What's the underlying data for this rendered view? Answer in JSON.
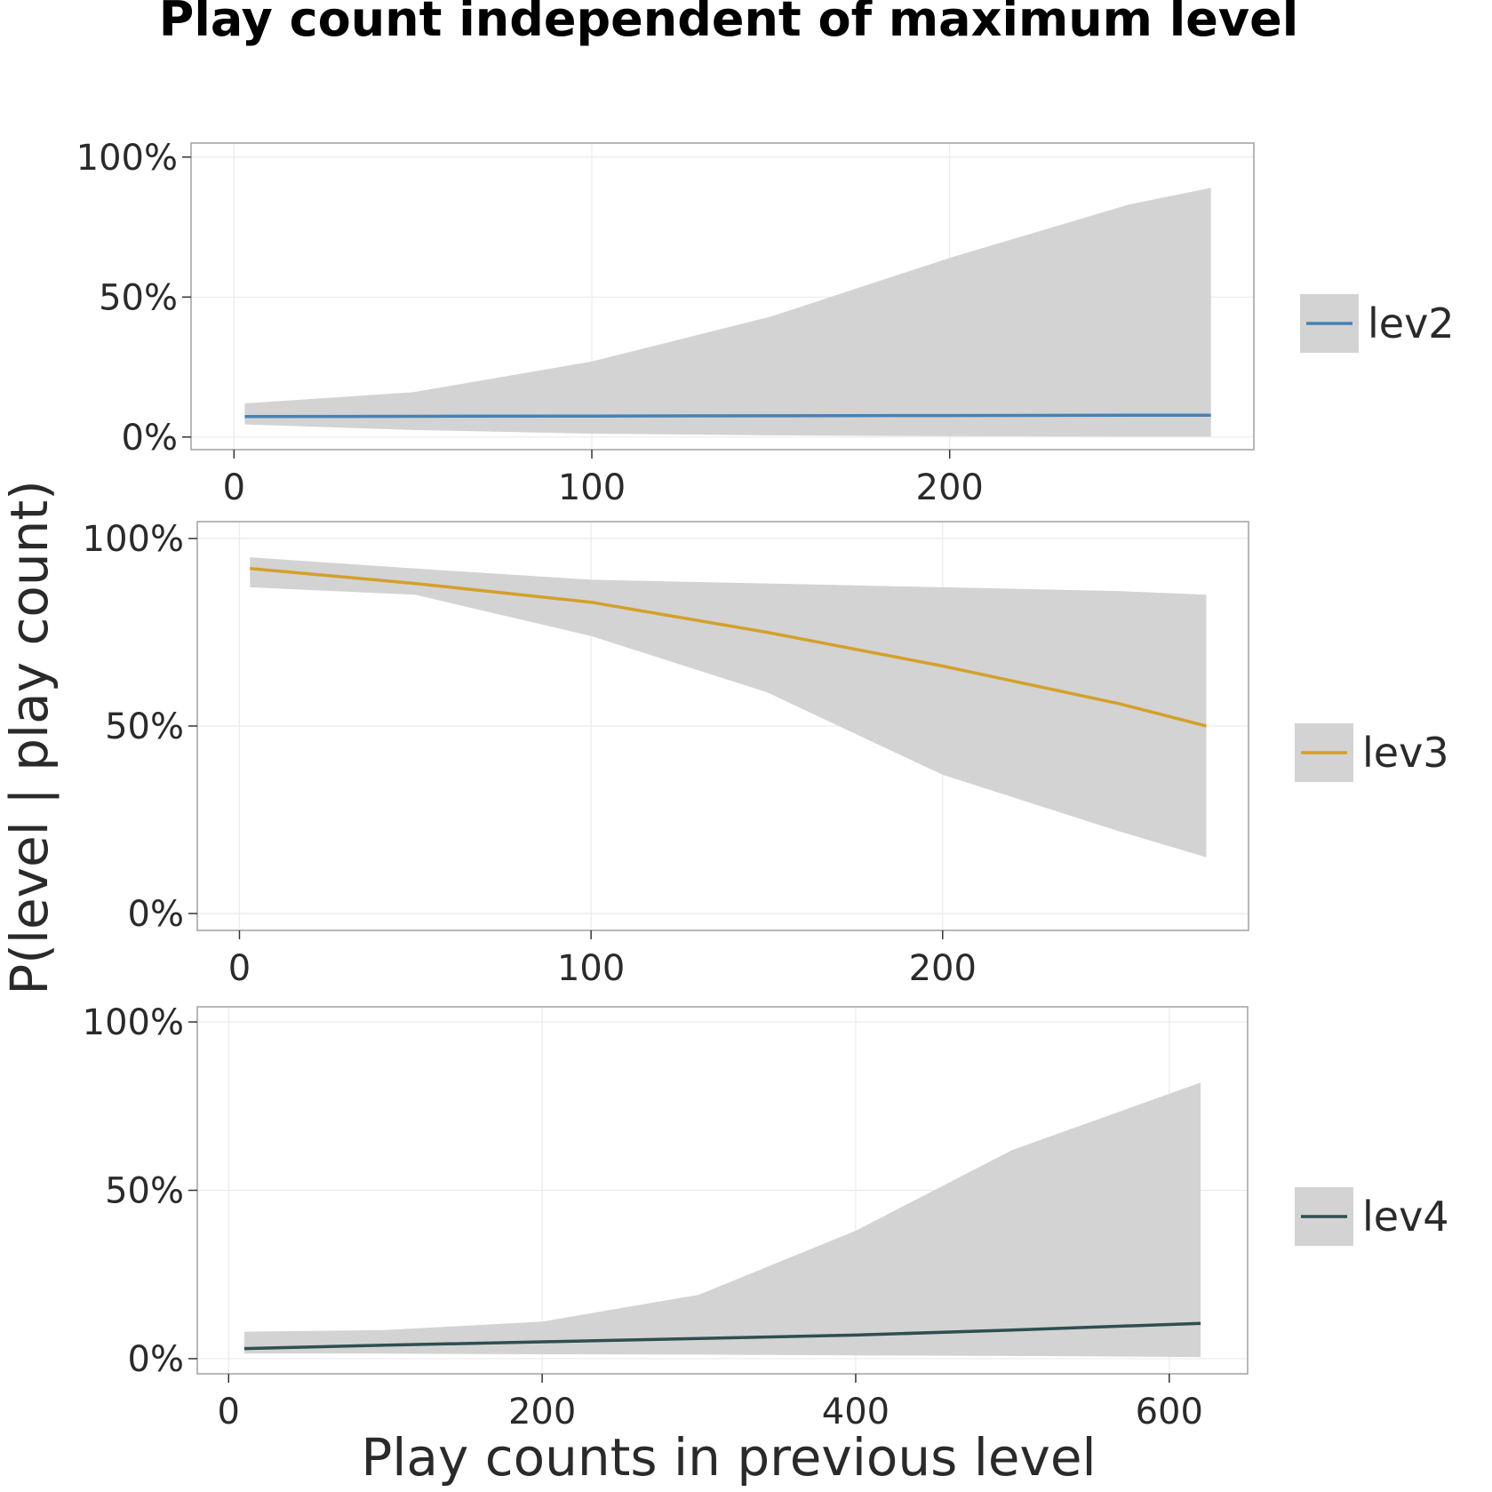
{
  "figure": {
    "title": "Play count independent of maximum level",
    "xlabel": "Play counts in previous level",
    "ylabel": "P(level | play count)"
  },
  "chart_data": [
    {
      "type": "line",
      "panel": "lev2",
      "series": [
        {
          "name": "lev2",
          "color": "#4682b4"
        }
      ],
      "x": [
        3,
        50,
        100,
        150,
        200,
        250,
        273
      ],
      "y": [
        0.073,
        0.074,
        0.075,
        0.076,
        0.077,
        0.078,
        0.078
      ],
      "ci_lower": [
        0.045,
        0.025,
        0.012,
        0.006,
        0.003,
        0.002,
        0.002
      ],
      "ci_upper": [
        0.12,
        0.16,
        0.27,
        0.43,
        0.64,
        0.83,
        0.89
      ],
      "xlim": [
        -12,
        285
      ],
      "ylim": [
        -0.045,
        1.05
      ],
      "xticks": [
        0,
        100,
        200
      ],
      "xtick_labels": [
        "0",
        "100",
        "200"
      ],
      "yticks": [
        0,
        0.5,
        1
      ],
      "ytick_labels": [
        "0%",
        "50%",
        "100%"
      ],
      "grid": true,
      "legend_position": "right"
    },
    {
      "type": "line",
      "panel": "lev3",
      "series": [
        {
          "name": "lev3",
          "color": "#d4a02a"
        }
      ],
      "x": [
        3,
        50,
        100,
        150,
        200,
        250,
        275
      ],
      "y": [
        0.92,
        0.88,
        0.83,
        0.75,
        0.66,
        0.56,
        0.5
      ],
      "ci_lower": [
        0.87,
        0.85,
        0.74,
        0.59,
        0.37,
        0.22,
        0.15
      ],
      "ci_upper": [
        0.95,
        0.92,
        0.89,
        0.88,
        0.87,
        0.86,
        0.85
      ],
      "xlim": [
        -12,
        287
      ],
      "ylim": [
        -0.045,
        1.045
      ],
      "xticks": [
        0,
        100,
        200
      ],
      "xtick_labels": [
        "0",
        "100",
        "200"
      ],
      "yticks": [
        0,
        0.5,
        1
      ],
      "ytick_labels": [
        "0%",
        "50%",
        "100%"
      ],
      "grid": true,
      "legend_position": "right"
    },
    {
      "type": "line",
      "panel": "lev4",
      "series": [
        {
          "name": "lev4",
          "color": "#2f4f4f"
        }
      ],
      "x": [
        10,
        100,
        200,
        300,
        400,
        500,
        620
      ],
      "y": [
        0.03,
        0.04,
        0.05,
        0.06,
        0.07,
        0.085,
        0.105
      ],
      "ci_lower": [
        0.015,
        0.015,
        0.013,
        0.012,
        0.01,
        0.008,
        0.005
      ],
      "ci_upper": [
        0.08,
        0.085,
        0.11,
        0.19,
        0.38,
        0.62,
        0.82
      ],
      "xlim": [
        -20,
        650
      ],
      "ylim": [
        -0.045,
        1.045
      ],
      "xticks": [
        0,
        200,
        400,
        600
      ],
      "xtick_labels": [
        "0",
        "200",
        "400",
        "600"
      ],
      "yticks": [
        0,
        0.5,
        1
      ],
      "ytick_labels": [
        "0%",
        "50%",
        "100%"
      ],
      "grid": true,
      "legend_position": "right"
    }
  ]
}
